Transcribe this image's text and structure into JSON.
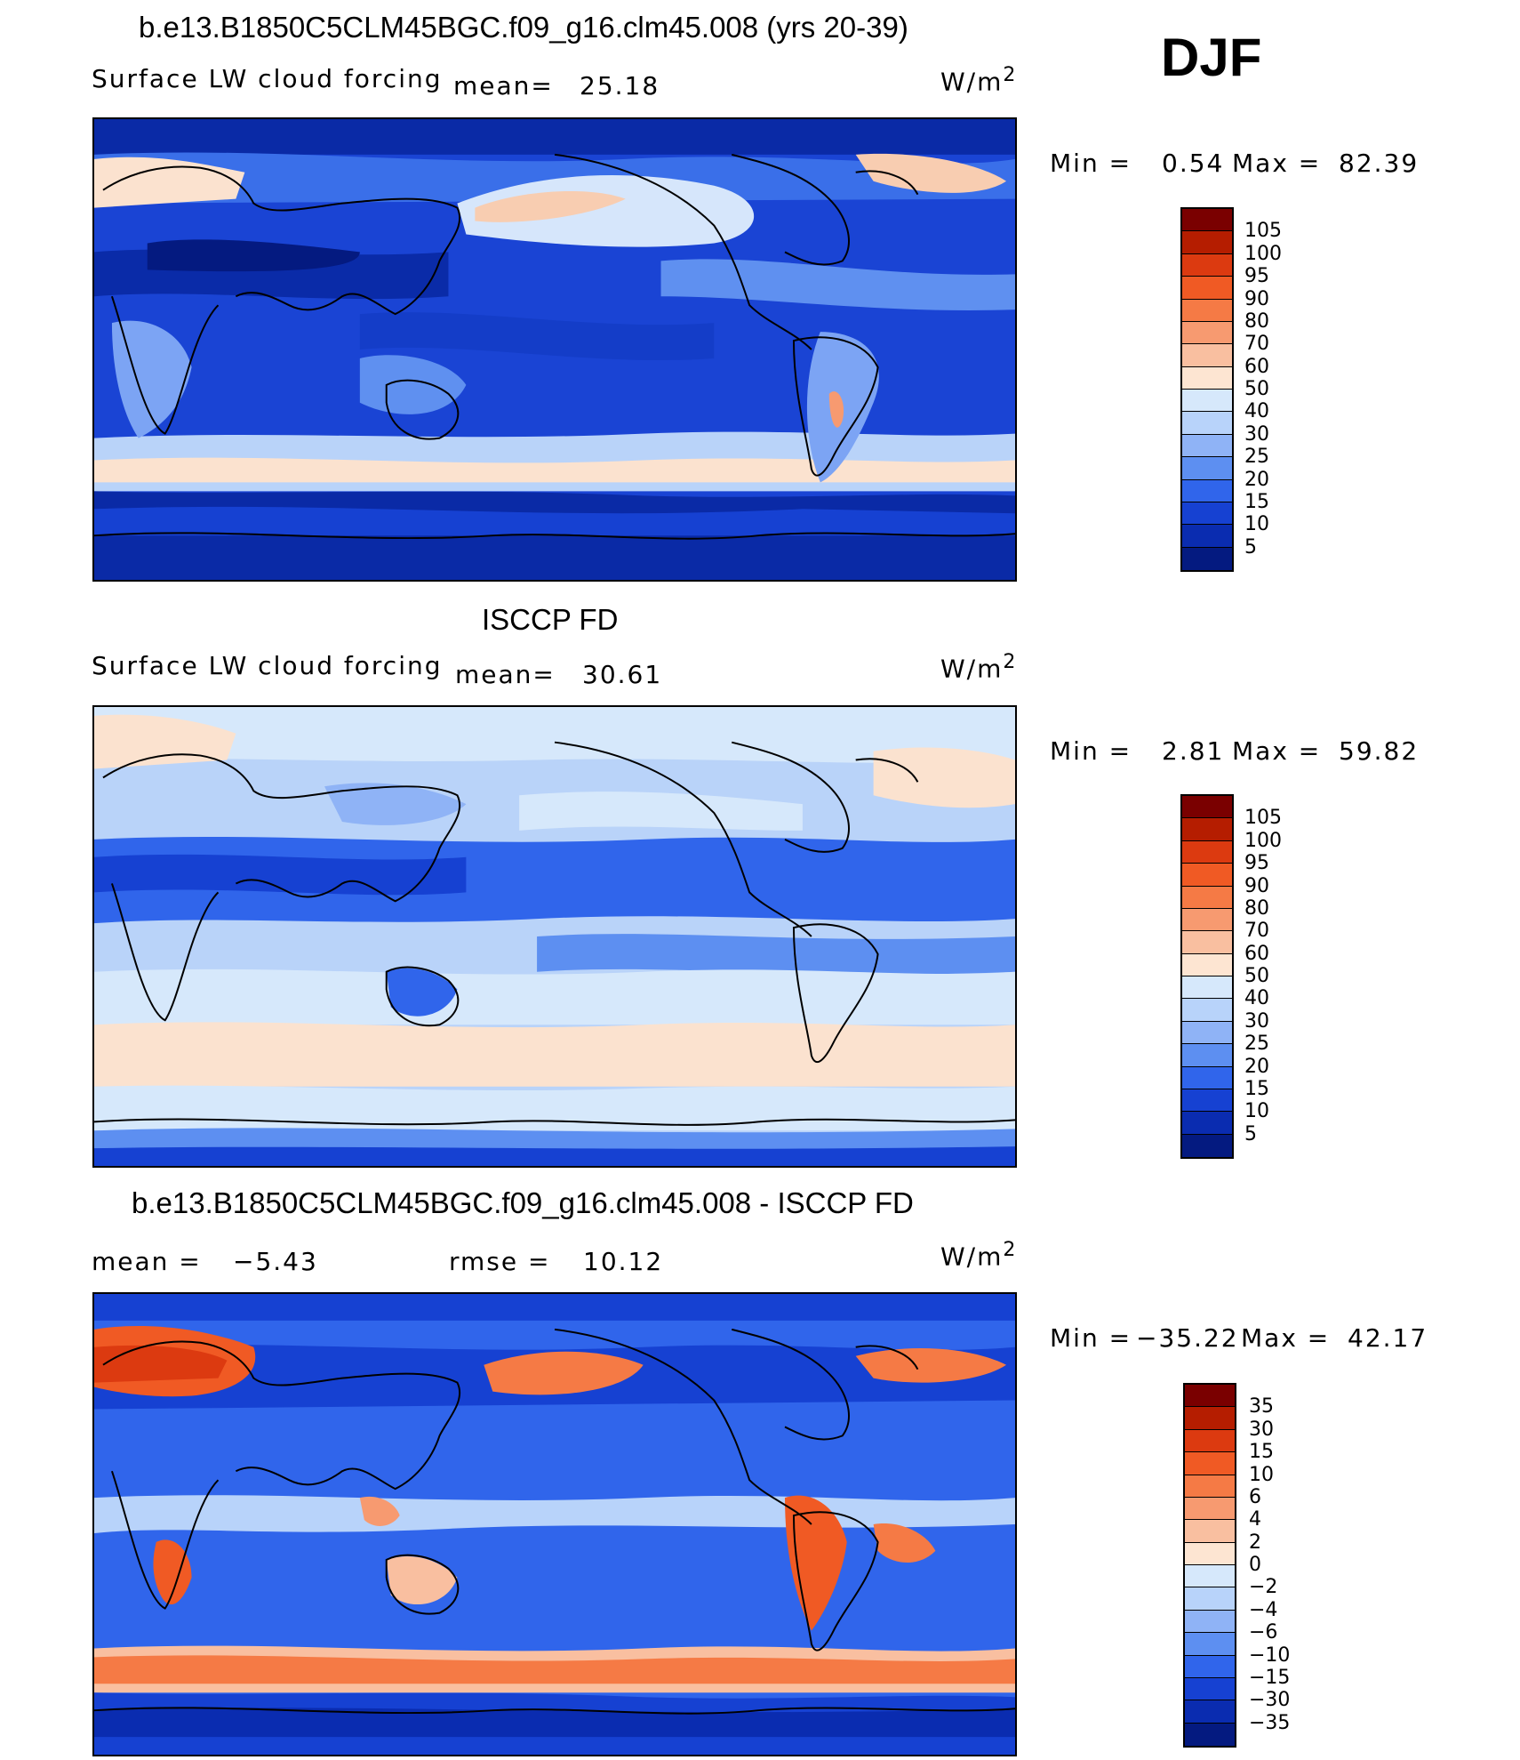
{
  "season": "DJF",
  "panels": [
    {
      "title": "b.e13.B1850C5CLM45BGC.f09_g16.clm45.008 (yrs 20-39)",
      "field": "Surface LW cloud forcing",
      "mean_label": "mean=",
      "mean_value": "25.18",
      "units": "W/m",
      "units_sup": "2",
      "min_label": "Min =",
      "min_value": "0.54",
      "max_label": "Max =",
      "max_value": "82.39",
      "map_style": "model",
      "colorbar_labels": [
        "105",
        "100",
        "95",
        "90",
        "80",
        "70",
        "60",
        "50",
        "40",
        "30",
        "25",
        "20",
        "15",
        "10",
        "5"
      ]
    },
    {
      "title": "ISCCP FD",
      "field": "Surface LW cloud forcing",
      "mean_label": "mean=",
      "mean_value": "30.61",
      "units": "W/m",
      "units_sup": "2",
      "min_label": "Min =",
      "min_value": "2.81",
      "max_label": "Max =",
      "max_value": "59.82",
      "map_style": "obs",
      "colorbar_labels": [
        "105",
        "100",
        "95",
        "90",
        "80",
        "70",
        "60",
        "50",
        "40",
        "30",
        "25",
        "20",
        "15",
        "10",
        "5"
      ]
    },
    {
      "title": "b.e13.B1850C5CLM45BGC.f09_g16.clm45.008 - ISCCP FD",
      "mean_label": "mean =",
      "mean_value": "−5.43",
      "rmse_label": "rmse =",
      "rmse_value": "10.12",
      "units": "W/m",
      "units_sup": "2",
      "min_label": "Min =",
      "min_value": "−35.22",
      "max_label": "Max =",
      "max_value": "42.17",
      "map_style": "diff",
      "colorbar_labels": [
        "35",
        "30",
        "15",
        "10",
        "6",
        "4",
        "2",
        "0",
        "−2",
        "−4",
        "−6",
        "−10",
        "−15",
        "−30",
        "−35"
      ]
    }
  ],
  "colorbar_colors": [
    "#7a0000",
    "#b51d00",
    "#dc3a10",
    "#f05a24",
    "#f57a45",
    "#f79a70",
    "#f9bfa0",
    "#fde5d2",
    "#d6e8fb",
    "#b8d3fa",
    "#8fb3f6",
    "#5d8ff1",
    "#3065eb",
    "#1641d2",
    "#0a2cb0",
    "#041a80"
  ]
}
